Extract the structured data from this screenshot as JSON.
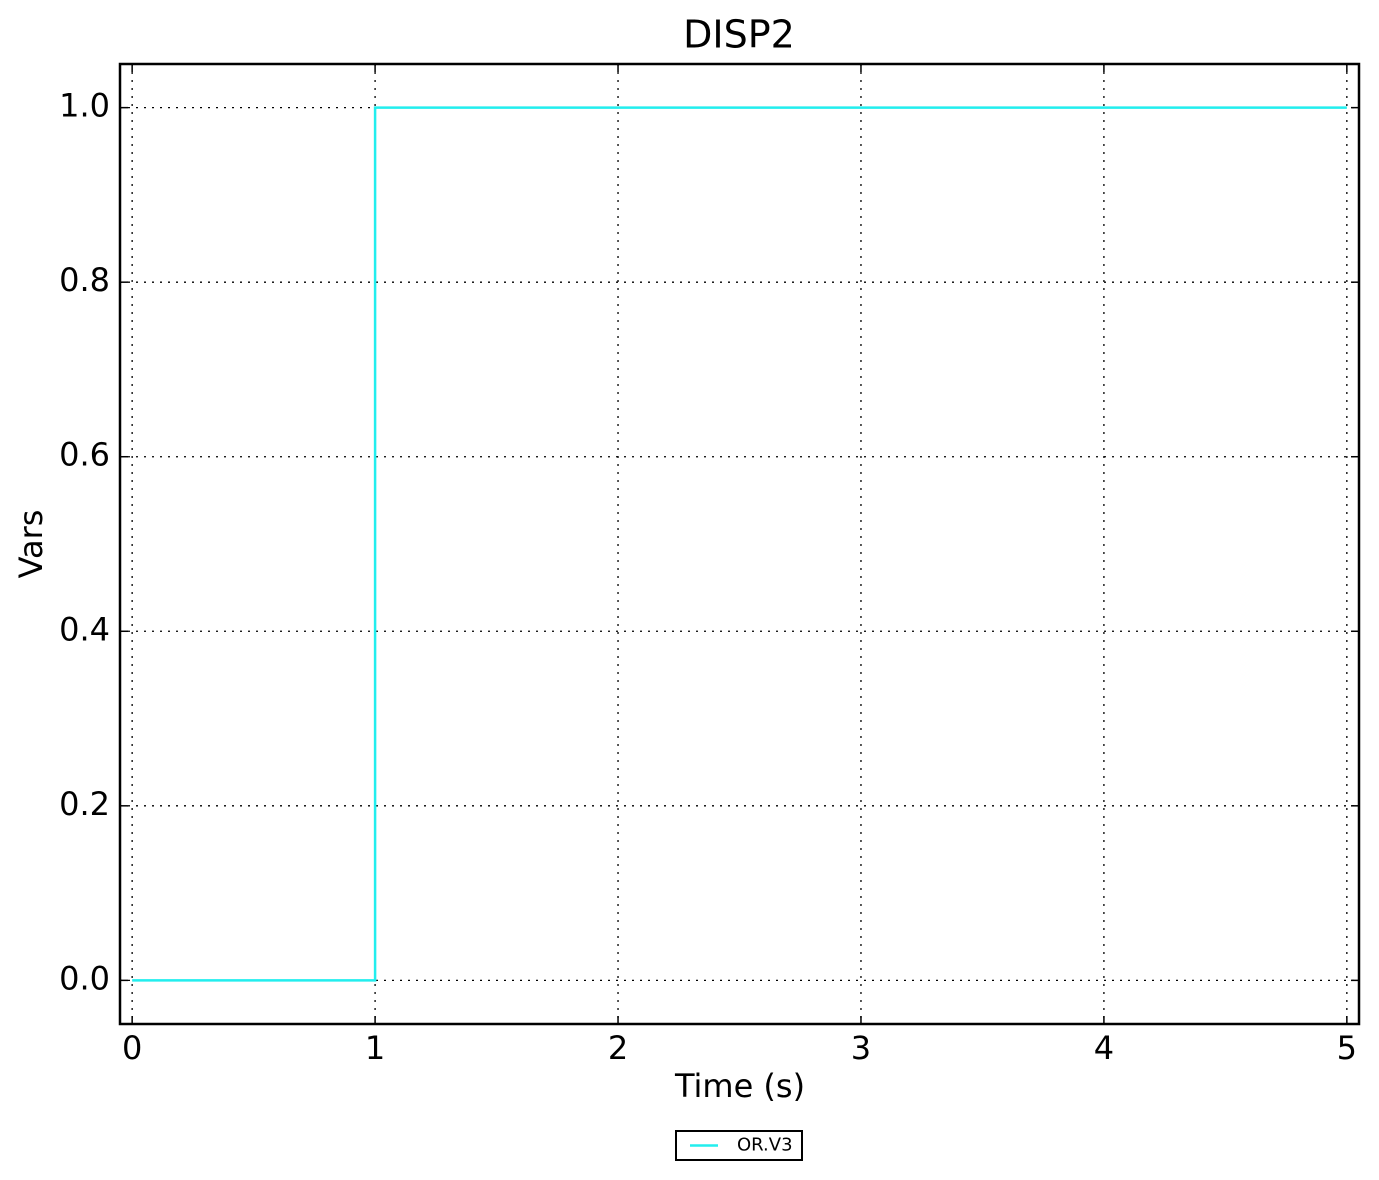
{
  "chart_data": {
    "type": "line",
    "title": "DISP2",
    "x_label": "Time (s)",
    "y_label": "Vars",
    "x": [
      0,
      1,
      1,
      5
    ],
    "series": [
      {
        "name": "OR.V3",
        "color": "#22eeee",
        "values": [
          0,
          0,
          1,
          1
        ]
      }
    ],
    "xlim": [
      -0.05,
      5.05
    ],
    "ylim": [
      -0.05,
      1.05
    ],
    "xticks": [
      0,
      1,
      2,
      3,
      4,
      5
    ],
    "yticks": [
      {
        "value": 0,
        "label": "0.0"
      },
      {
        "value": 0.2,
        "label": "0.2"
      },
      {
        "value": 0.4,
        "label": "0.4"
      },
      {
        "value": 0.6,
        "label": "0.6"
      },
      {
        "value": 0.8,
        "label": "0.8"
      },
      {
        "value": 1,
        "label": "1.0"
      }
    ],
    "grid": true,
    "legend": "bottom"
  }
}
